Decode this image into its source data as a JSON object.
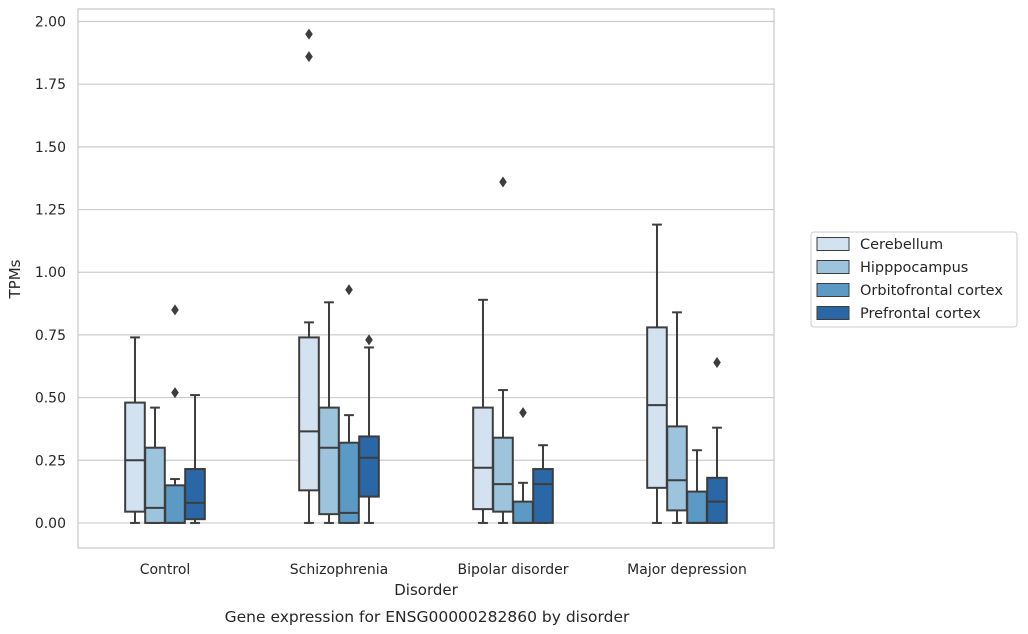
{
  "chart_data": {
    "type": "box",
    "title": "",
    "caption": "Gene expression for ENSG00000282860 by disorder",
    "xlabel": "Disorder",
    "ylabel": "TPMs",
    "ylim": [
      -0.1,
      2.05
    ],
    "yticks": [
      "0.00",
      "0.25",
      "0.50",
      "0.75",
      "1.00",
      "1.25",
      "1.50",
      "1.75",
      "2.00"
    ],
    "grid": true,
    "legend_position": "right",
    "categories": [
      "Control",
      "Schizophrenia",
      "Bipolar disorder",
      "Major depression"
    ],
    "series": [
      {
        "name": "Cerebellum",
        "color": "#d3e2f1",
        "boxes": [
          {
            "whisker_low": 0.0,
            "q1": 0.045,
            "median": 0.25,
            "q3": 0.48,
            "whisker_high": 0.74,
            "outliers": []
          },
          {
            "whisker_low": 0.0,
            "q1": 0.13,
            "median": 0.365,
            "q3": 0.74,
            "whisker_high": 0.8,
            "outliers": [
              1.86,
              1.95
            ]
          },
          {
            "whisker_low": 0.0,
            "q1": 0.055,
            "median": 0.22,
            "q3": 0.46,
            "whisker_high": 0.89,
            "outliers": []
          },
          {
            "whisker_low": 0.0,
            "q1": 0.14,
            "median": 0.47,
            "q3": 0.78,
            "whisker_high": 1.19,
            "outliers": []
          }
        ]
      },
      {
        "name": "Hipppocampus",
        "color": "#9dc4dc",
        "boxes": [
          {
            "whisker_low": 0.0,
            "q1": 0.0,
            "median": 0.06,
            "q3": 0.3,
            "whisker_high": 0.46,
            "outliers": []
          },
          {
            "whisker_low": 0.0,
            "q1": 0.035,
            "median": 0.3,
            "q3": 0.46,
            "whisker_high": 0.88,
            "outliers": []
          },
          {
            "whisker_low": 0.0,
            "q1": 0.045,
            "median": 0.155,
            "q3": 0.34,
            "whisker_high": 0.53,
            "outliers": [
              1.36
            ]
          },
          {
            "whisker_low": 0.0,
            "q1": 0.05,
            "median": 0.17,
            "q3": 0.385,
            "whisker_high": 0.84,
            "outliers": []
          }
        ]
      },
      {
        "name": "Orbitofrontal cortex",
        "color": "#5c9ac6",
        "boxes": [
          {
            "whisker_low": 0.0,
            "q1": 0.0,
            "median": 0.0,
            "q3": 0.15,
            "whisker_high": 0.175,
            "outliers": [
              0.52,
              0.85
            ]
          },
          {
            "whisker_low": 0.0,
            "q1": 0.0,
            "median": 0.04,
            "q3": 0.32,
            "whisker_high": 0.43,
            "outliers": [
              0.93
            ]
          },
          {
            "whisker_low": 0.0,
            "q1": 0.0,
            "median": 0.0,
            "q3": 0.085,
            "whisker_high": 0.16,
            "outliers": [
              0.44
            ]
          },
          {
            "whisker_low": 0.0,
            "q1": 0.0,
            "median": 0.0,
            "q3": 0.125,
            "whisker_high": 0.29,
            "outliers": []
          }
        ]
      },
      {
        "name": "Prefrontal cortex",
        "color": "#2a67a6",
        "boxes": [
          {
            "whisker_low": 0.0,
            "q1": 0.015,
            "median": 0.08,
            "q3": 0.215,
            "whisker_high": 0.51,
            "outliers": []
          },
          {
            "whisker_low": 0.0,
            "q1": 0.105,
            "median": 0.26,
            "q3": 0.345,
            "whisker_high": 0.7,
            "outliers": [
              0.73
            ]
          },
          {
            "whisker_low": 0.0,
            "q1": 0.0,
            "median": 0.155,
            "q3": 0.215,
            "whisker_high": 0.31,
            "outliers": []
          },
          {
            "whisker_low": 0.0,
            "q1": 0.0,
            "median": 0.085,
            "q3": 0.18,
            "whisker_high": 0.38,
            "outliers": [
              0.64
            ]
          }
        ]
      }
    ]
  }
}
